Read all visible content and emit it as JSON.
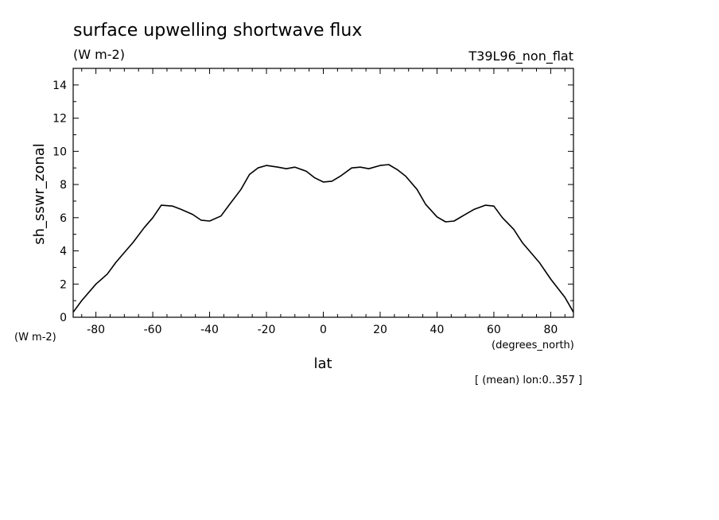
{
  "chart_data": {
    "type": "line",
    "title": "surface upwelling shortwave flux",
    "subtitle": "(W m-2)",
    "run_label": "T39L96_non_flat",
    "ylabel": "sh_sswr_zonal",
    "y_units": "(W m-2)",
    "xlabel": "lat",
    "x_units": "(degrees_north)",
    "footnote": "[ (mean) lon:0..357 ]",
    "xlim": [
      -88,
      88
    ],
    "ylim": [
      0,
      15
    ],
    "grid": false,
    "x_ticks": [
      "-80",
      "-60",
      "-40",
      "-20",
      "0",
      "20",
      "40",
      "60",
      "80"
    ],
    "y_ticks": [
      "0",
      "2",
      "4",
      "6",
      "8",
      "10",
      "12",
      "14"
    ],
    "series": [
      {
        "x": [
          -88,
          -85,
          -80,
          -76,
          -73,
          -70,
          -67,
          -63,
          -60,
          -57,
          -53,
          -50,
          -46,
          -43,
          -40,
          -36,
          -33,
          -29,
          -26,
          -23,
          -20,
          -16,
          -13,
          -10,
          -6,
          -3,
          0,
          3,
          6,
          10,
          13,
          16,
          20,
          23,
          26,
          29,
          33,
          36,
          40,
          43,
          46,
          50,
          53,
          57,
          60,
          63,
          67,
          70,
          73,
          76,
          80,
          85,
          88
        ],
        "y": [
          0.3,
          1.0,
          2.0,
          2.6,
          3.3,
          3.9,
          4.5,
          5.4,
          6.0,
          6.75,
          6.7,
          6.5,
          6.2,
          5.85,
          5.8,
          6.1,
          6.8,
          7.7,
          8.6,
          9.0,
          9.15,
          9.05,
          8.95,
          9.05,
          8.8,
          8.4,
          8.15,
          8.2,
          8.5,
          9.0,
          9.05,
          8.95,
          9.15,
          9.2,
          8.9,
          8.5,
          7.7,
          6.8,
          6.05,
          5.75,
          5.8,
          6.2,
          6.5,
          6.75,
          6.7,
          6.0,
          5.3,
          4.5,
          3.9,
          3.3,
          2.3,
          1.2,
          0.3
        ]
      }
    ]
  }
}
